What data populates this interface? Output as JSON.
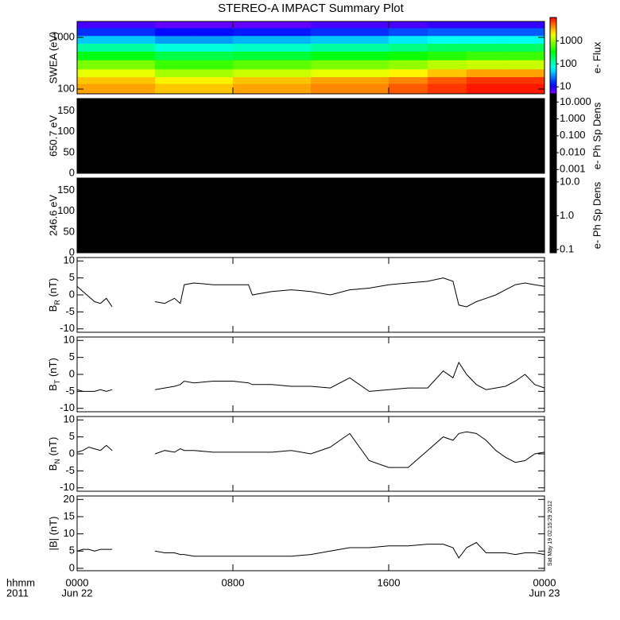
{
  "chart_data": [
    {
      "type": "spectrogram",
      "title": "STEREO-A IMPACT Summary Plot",
      "ylabel": "SWEA (eV)",
      "xlim": [
        0,
        24
      ],
      "ylog": true,
      "ylim": [
        81,
        2030
      ],
      "yticks": [
        100,
        1000
      ],
      "x": [
        1,
        3,
        5,
        7,
        9,
        11,
        13,
        15,
        17,
        19,
        21,
        23
      ],
      "y": [
        110,
        150,
        200,
        300,
        450,
        650,
        900,
        1300,
        1800
      ],
      "values": [
        [
          2500,
          2500,
          2000,
          2000,
          2500,
          2500,
          3000,
          3000,
          4000,
          5000,
          6000,
          6000
        ],
        [
          2000,
          2000,
          1500,
          1500,
          2000,
          2000,
          2500,
          2500,
          3000,
          4000,
          5000,
          5000
        ],
        [
          1200,
          1200,
          800,
          800,
          1000,
          1000,
          1200,
          1200,
          1500,
          2000,
          2500,
          2500
        ],
        [
          600,
          600,
          400,
          400,
          500,
          500,
          600,
          600,
          700,
          900,
          1000,
          1000
        ],
        [
          250,
          250,
          180,
          180,
          200,
          200,
          250,
          250,
          300,
          350,
          400,
          400
        ],
        [
          100,
          100,
          70,
          70,
          80,
          80,
          100,
          100,
          120,
          150,
          150,
          150
        ],
        [
          40,
          40,
          30,
          30,
          35,
          35,
          40,
          40,
          50,
          60,
          60,
          60
        ],
        [
          15,
          15,
          12,
          12,
          13,
          13,
          15,
          15,
          18,
          20,
          20,
          20
        ],
        [
          7,
          7,
          6,
          6,
          6,
          6,
          7,
          7,
          7,
          8,
          8,
          8
        ]
      ],
      "colormap": "rainbow",
      "clog": true,
      "clim": [
        5,
        7000
      ],
      "cticks": [
        10,
        100,
        1000
      ],
      "clabel": "e- Flux"
    },
    {
      "type": "spectrogram",
      "ylabel": "650.7 eV",
      "xlim": [
        0,
        24
      ],
      "ylim": [
        0,
        180
      ],
      "yticks": [
        0,
        50,
        100,
        150
      ],
      "fill": "#000000",
      "colormap": "#000000",
      "clog": true,
      "clim": [
        0.0006,
        16
      ],
      "cticks": [
        {
          "value": 10,
          "label": "10.000"
        },
        {
          "value": 1,
          "label": "1.000"
        },
        {
          "value": 0.1,
          "label": "0.100"
        },
        {
          "value": 0.01,
          "label": "0.010"
        },
        {
          "value": 0.001,
          "label": "0.001"
        }
      ],
      "clabel": "e- Ph Sp Dens"
    },
    {
      "type": "spectrogram",
      "ylabel": "246.6 eV",
      "xlim": [
        0,
        24
      ],
      "ylim": [
        0,
        180
      ],
      "yticks": [
        0,
        50,
        100,
        150
      ],
      "fill": "#000000",
      "colormap": "#000000",
      "clog": true,
      "clim": [
        0.08,
        13
      ],
      "cticks": [
        {
          "value": 10,
          "label": "10.0"
        },
        {
          "value": 1,
          "label": "1.0"
        },
        {
          "value": 0.1,
          "label": "0.1"
        }
      ],
      "clabel": "e- Ph Sp Dens"
    },
    {
      "type": "line",
      "ylabel": [
        "B",
        "R",
        " (nT)"
      ],
      "color": "#000000",
      "xlim": [
        0,
        24
      ],
      "ylim": [
        -11,
        11
      ],
      "yticks": [
        -10,
        -5,
        0,
        5,
        10
      ],
      "x": [
        0,
        0.3,
        0.6,
        0.9,
        1.2,
        1.5,
        1.8,
        2.9,
        4.0,
        4.5,
        5.0,
        5.3,
        5.5,
        6,
        7,
        8,
        8.8,
        9,
        10,
        11,
        12,
        13,
        14,
        15,
        16,
        17,
        18,
        18.8,
        19.3,
        19.6,
        20,
        20.5,
        21,
        21.5,
        22,
        22.5,
        23,
        23.5,
        24
      ],
      "values": [
        2.5,
        1,
        -0.5,
        -2,
        -2.5,
        -1,
        -3.5,
        null,
        -2,
        -2.5,
        -1,
        -2.5,
        3,
        3.5,
        3,
        3,
        3,
        0,
        1,
        1.5,
        1,
        0,
        1.5,
        2,
        3,
        3.5,
        4,
        5,
        4,
        -3,
        -3.5,
        -2,
        -1,
        0,
        1.5,
        3,
        3.5,
        3,
        2.5
      ]
    },
    {
      "type": "line",
      "ylabel": [
        "B",
        "T",
        " (nT)"
      ],
      "color": "#000000",
      "xlim": [
        0,
        24
      ],
      "ylim": [
        -11,
        11
      ],
      "yticks": [
        -10,
        -5,
        0,
        5,
        10
      ],
      "x": [
        0,
        0.3,
        0.6,
        0.9,
        1.2,
        1.5,
        1.8,
        2.9,
        4.0,
        4.5,
        5.0,
        5.3,
        5.5,
        6,
        7,
        8,
        8.8,
        9,
        10,
        11,
        12,
        13,
        14,
        15,
        16,
        17,
        18,
        18.8,
        19.3,
        19.6,
        20,
        20.5,
        21,
        21.5,
        22,
        22.5,
        23,
        23.5,
        24
      ],
      "values": [
        -4.5,
        -5,
        -5,
        -5,
        -4.5,
        -5,
        -4.5,
        null,
        -4.5,
        -4,
        -3.5,
        -3,
        -2,
        -2.5,
        -2,
        -2,
        -2.5,
        -3,
        -3,
        -3.5,
        -3.5,
        -4,
        -1,
        -5,
        -4.5,
        -4,
        -4,
        1,
        -1,
        3.5,
        0,
        -3,
        -4.5,
        -4,
        -3.5,
        -2,
        0,
        -3,
        -4
      ]
    },
    {
      "type": "line",
      "ylabel": [
        "B",
        "N",
        " (nT)"
      ],
      "color": "#000000",
      "xlim": [
        0,
        24
      ],
      "ylim": [
        -11,
        11
      ],
      "yticks": [
        -10,
        -5,
        0,
        5,
        10
      ],
      "x": [
        0,
        0.3,
        0.6,
        0.9,
        1.2,
        1.5,
        1.8,
        2.9,
        4.0,
        4.5,
        5.0,
        5.3,
        5.5,
        6,
        7,
        8,
        8.8,
        9,
        10,
        11,
        12,
        13,
        14,
        15,
        16,
        17,
        18,
        18.8,
        19.3,
        19.6,
        20,
        20.5,
        21,
        21.5,
        22,
        22.5,
        23,
        23.5,
        24
      ],
      "values": [
        0.5,
        1,
        2,
        1.5,
        1,
        2.5,
        1,
        null,
        0,
        1,
        0.5,
        1.5,
        1,
        1,
        0.5,
        0.5,
        0.5,
        0.5,
        0.5,
        1,
        0,
        2,
        6,
        -2,
        -4,
        -4,
        1,
        5,
        4,
        6,
        6.5,
        6,
        4,
        1,
        -1,
        -2.5,
        -2,
        0,
        0.5
      ]
    },
    {
      "type": "line",
      "ylabel": "|B| (nT)",
      "color": "#000000",
      "xlim": [
        0,
        24
      ],
      "ylim": [
        -0.7,
        21
      ],
      "yticks": [
        0,
        5,
        10,
        15,
        20
      ],
      "x": [
        0,
        0.3,
        0.6,
        0.9,
        1.2,
        1.5,
        1.8,
        2.9,
        4.0,
        4.5,
        5.0,
        5.3,
        5.5,
        6,
        7,
        8,
        8.8,
        9,
        10,
        11,
        12,
        13,
        14,
        15,
        16,
        17,
        18,
        18.8,
        19.3,
        19.6,
        20,
        20.5,
        21,
        21.5,
        22,
        22.5,
        23,
        23.5,
        24
      ],
      "values": [
        5,
        5.5,
        5.5,
        5,
        5.5,
        5.5,
        5.5,
        null,
        5,
        4.5,
        4.5,
        4,
        4,
        3.5,
        3.5,
        3.5,
        3.5,
        3.5,
        3.5,
        3.5,
        4,
        5,
        6,
        6,
        6.5,
        6.5,
        7,
        7,
        6,
        3,
        6,
        7.5,
        4.5,
        4.5,
        4.5,
        4,
        4.5,
        4.5,
        4
      ],
      "xticks": [
        {
          "value": 0,
          "label": "0000"
        },
        {
          "value": 8,
          "label": "0800"
        },
        {
          "value": 16,
          "label": "1600"
        },
        {
          "value": 24,
          "label": "0000"
        }
      ],
      "xdates": [
        {
          "value": 0,
          "label": "Jun 22"
        },
        {
          "value": 24,
          "label": "Jun 23"
        }
      ],
      "xlabel": [
        "hhmm",
        "2011"
      ],
      "annotation": "Sat May 19 02:15:29 2012"
    }
  ]
}
